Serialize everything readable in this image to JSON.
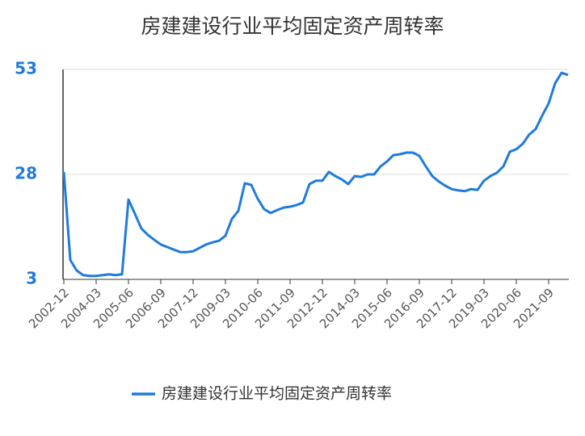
{
  "chart_data": {
    "type": "line",
    "title": "房建建设行业平均固定资产周转率",
    "categories": [
      "2002-12",
      null,
      null,
      null,
      null,
      "2004-03",
      null,
      null,
      null,
      null,
      "2005-06",
      null,
      null,
      null,
      null,
      "2006-09",
      null,
      null,
      null,
      null,
      "2007-12",
      null,
      null,
      null,
      null,
      "2009-03",
      null,
      null,
      null,
      null,
      "2010-06",
      null,
      null,
      null,
      null,
      "2011-09",
      null,
      null,
      null,
      null,
      "2012-12",
      null,
      null,
      null,
      null,
      "2014-03",
      null,
      null,
      null,
      null,
      "2015-06",
      null,
      null,
      null,
      null,
      "2016-09",
      null,
      null,
      null,
      null,
      "2017-12",
      null,
      null,
      null,
      null,
      "2019-03",
      null,
      null,
      null,
      null,
      "2020-06",
      null,
      null,
      null,
      null,
      "2021-09",
      null,
      null,
      null
    ],
    "series": [
      {
        "name": "房建建设行业平均固定资产周转率",
        "color": "#1f7bdc",
        "values": [
          28.6,
          7.6,
          5.1,
          4.0,
          3.8,
          3.8,
          4.0,
          4.2,
          4.0,
          4.2,
          22.0,
          18.6,
          15.1,
          13.6,
          12.4,
          11.3,
          10.7,
          10.1,
          9.5,
          9.5,
          9.7,
          10.5,
          11.3,
          11.8,
          12.2,
          13.4,
          17.4,
          19.3,
          25.9,
          25.5,
          22.2,
          19.7,
          18.8,
          19.5,
          20.1,
          20.3,
          20.7,
          21.3,
          25.7,
          26.5,
          26.5,
          28.6,
          27.6,
          26.8,
          25.7,
          27.6,
          27.4,
          28.0,
          28.0,
          29.9,
          31.1,
          32.6,
          32.8,
          33.2,
          33.2,
          32.4,
          29.9,
          27.6,
          26.3,
          25.3,
          24.5,
          24.2,
          24.0,
          24.5,
          24.3,
          26.5,
          27.6,
          28.4,
          29.9,
          33.4,
          34.0,
          35.3,
          37.5,
          38.8,
          42.0,
          44.9,
          49.7,
          52.2,
          51.7
        ]
      }
    ],
    "ylim": [
      3,
      53
    ],
    "yticks": [
      3,
      28,
      53
    ],
    "grid": true,
    "legend": "bottom"
  }
}
